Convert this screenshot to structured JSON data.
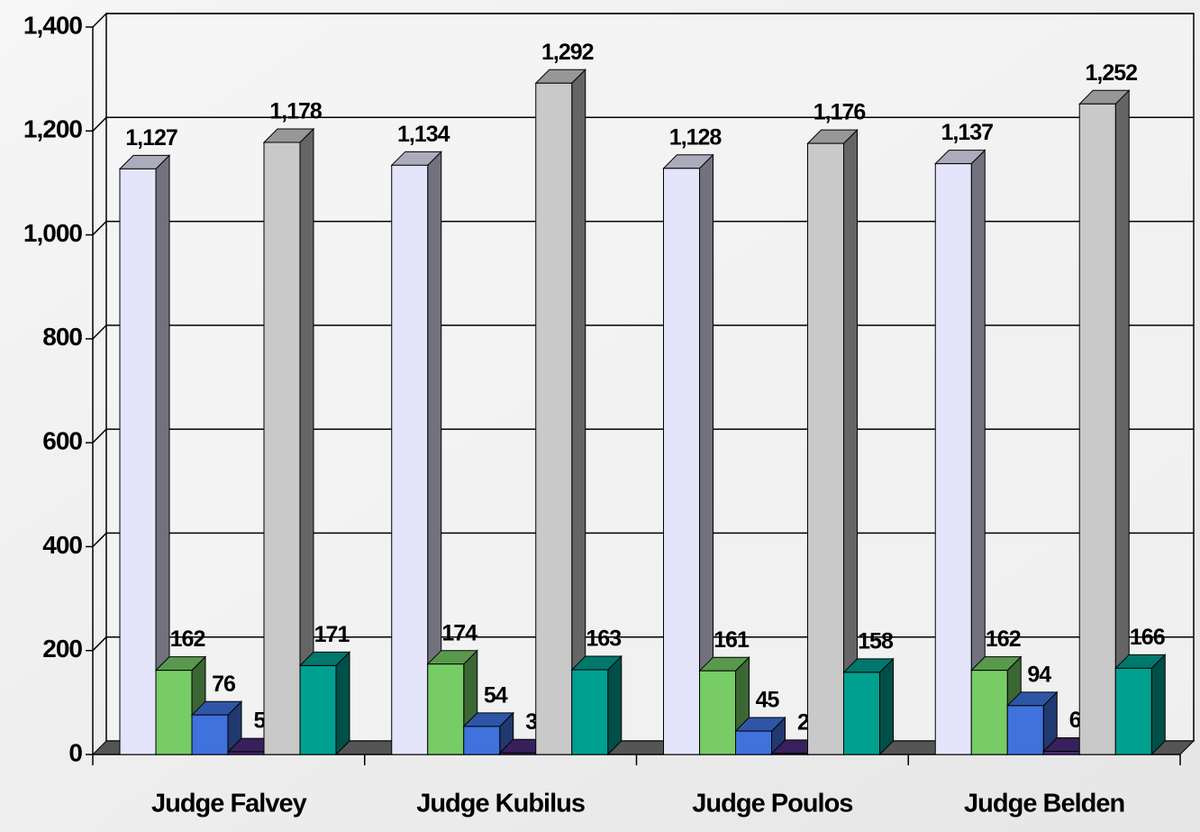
{
  "chart_data": {
    "type": "bar3d",
    "categories": [
      "Judge Falvey",
      "Judge Kubilus",
      "Judge Poulos",
      "Judge Belden"
    ],
    "series": [
      {
        "color": "#e4e4fb",
        "values": [
          1127,
          1134,
          1128,
          1137
        ],
        "value_labels": [
          "1,127",
          "1,134",
          "1,128",
          "1,137"
        ]
      },
      {
        "color": "#77cc66",
        "values": [
          162,
          174,
          161,
          162
        ]
      },
      {
        "color": "#3f72dd",
        "values": [
          76,
          54,
          45,
          94
        ]
      },
      {
        "color": "#4b2a7a",
        "values": [
          5,
          3,
          2,
          6
        ]
      },
      {
        "color": "#c9c9c9",
        "values": [
          1178,
          1292,
          1176,
          1252
        ],
        "value_labels": [
          "1,178",
          "1,292",
          "1,176",
          "1,252"
        ]
      },
      {
        "color": "#00a091",
        "values": [
          171,
          163,
          158,
          166
        ]
      }
    ],
    "ylim": [
      0,
      1400
    ],
    "yticks": [
      0,
      200,
      400,
      600,
      800,
      {
        "value": 1000,
        "label": "1,000"
      },
      {
        "value": 1200,
        "label": "1,200"
      },
      {
        "value": 1400,
        "label": "1,400"
      }
    ],
    "grid": true
  }
}
